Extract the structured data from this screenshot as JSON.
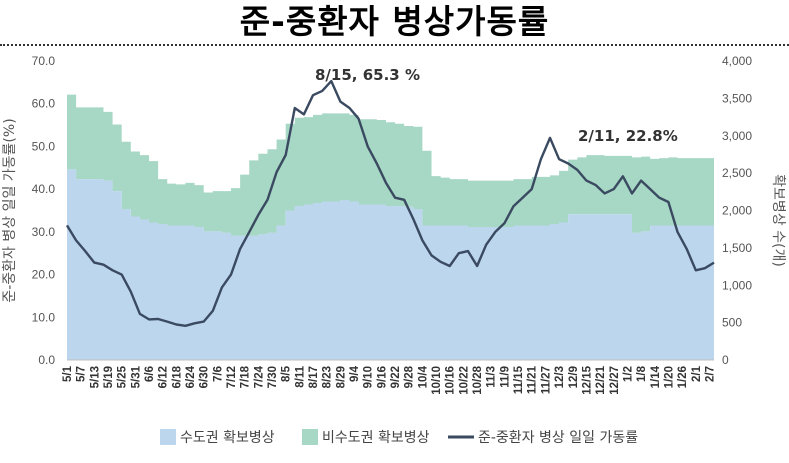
{
  "page": {
    "title": "준-중환자 병상가동률"
  },
  "chart_data": {
    "type": "line",
    "title": "준-중환자 병상가동률",
    "y_left_label": "준-중환자 병상 일일 가동률(%)",
    "y_right_label": "확보병상 수(개)",
    "y_left_range": [
      0,
      70
    ],
    "y_right_range": [
      0,
      4000
    ],
    "y_left_ticks": [
      "0.0",
      "10.0",
      "20.0",
      "30.0",
      "40.0",
      "50.0",
      "60.0",
      "70.0"
    ],
    "y_right_ticks": [
      "0",
      "500",
      "1,000",
      "1,500",
      "2,000",
      "2,500",
      "3,000",
      "3,500",
      "4,000"
    ],
    "x_ticks": [
      "5/1",
      "5/7",
      "5/13",
      "5/19",
      "5/25",
      "5/31",
      "6/6",
      "6/12",
      "6/18",
      "6/24",
      "6/30",
      "7/6",
      "7/12",
      "7/18",
      "7/24",
      "7/30",
      "8/5",
      "8/11",
      "8/17",
      "8/23",
      "8/29",
      "9/4",
      "9/10",
      "9/16",
      "9/22",
      "9/28",
      "10/4",
      "10/10",
      "10/16",
      "10/22",
      "10/28",
      "11/3",
      "11/9",
      "11/15",
      "11/21",
      "11/27",
      "12/3",
      "12/9",
      "12/15",
      "12/21",
      "12/27",
      "1/2",
      "1/8",
      "1/14",
      "1/20",
      "1/26",
      "2/1",
      "2/7"
    ],
    "legend": [
      "수도권 확보병상",
      "비수도권 확보병상",
      "준-중환자 병상 일일 가동률"
    ],
    "legend_position": "bottom",
    "annotations": [
      {
        "text": "8/15, 65.3 %",
        "x": "8/15",
        "y": 65.3
      },
      {
        "text": "2/11, 22.8%",
        "x": "2/11",
        "y": 22.8
      }
    ],
    "x_step_days": 6,
    "colors": {
      "capital": "#bcd6ee",
      "noncapital": "#a7d7c5",
      "line": "#3a4a60"
    },
    "series": [
      {
        "name": "수도권 확보병상",
        "axis": "right",
        "type": "area",
        "values": [
          2550,
          2420,
          2420,
          2420,
          2400,
          2260,
          2020,
          1920,
          1880,
          1840,
          1820,
          1800,
          1800,
          1800,
          1780,
          1720,
          1720,
          1700,
          1660,
          1660,
          1660,
          1680,
          1700,
          1800,
          2000,
          2060,
          2080,
          2100,
          2120,
          2120,
          2140,
          2120,
          2080,
          2080,
          2080,
          2060,
          2060,
          2050,
          2020,
          1800,
          1800,
          1800,
          1800,
          1800,
          1780,
          1780,
          1780,
          1780,
          1780,
          1800,
          1800,
          1800,
          1800,
          1820,
          1840,
          1950,
          1950,
          1950,
          1950,
          1950,
          1950,
          1950,
          1700,
          1720,
          1800,
          1800,
          1800,
          1800,
          1800,
          1800,
          1800,
          1700
        ]
      },
      {
        "name": "비수도권 확보병상",
        "axis": "right",
        "type": "area",
        "values": [
          1000,
          960,
          960,
          960,
          920,
          890,
          900,
          870,
          860,
          820,
          600,
          560,
          550,
          570,
          560,
          520,
          540,
          560,
          640,
          820,
          1010,
          1080,
          1120,
          1150,
          1160,
          1180,
          1170,
          1180,
          1180,
          1180,
          1160,
          1160,
          1140,
          1140,
          1130,
          1120,
          1100,
          1080,
          1100,
          1000,
          660,
          640,
          620,
          620,
          620,
          620,
          620,
          620,
          620,
          620,
          620,
          650,
          650,
          650,
          690,
          730,
          760,
          790,
          790,
          780,
          780,
          780,
          1010,
          1000,
          890,
          900,
          910,
          900,
          900,
          900,
          900,
          360
        ]
      },
      {
        "name": "준-중환자 병상 일일 가동률",
        "axis": "left",
        "type": "line",
        "values": [
          31.5,
          28.0,
          25.5,
          22.8,
          22.3,
          21.0,
          20.0,
          16.0,
          10.8,
          9.5,
          9.6,
          9.0,
          8.3,
          8.0,
          8.6,
          9.0,
          11.5,
          17.0,
          20.0,
          26.0,
          30.0,
          34.0,
          37.5,
          44.0,
          48.0,
          59.0,
          57.5,
          62.0,
          63.0,
          65.3,
          60.5,
          59.0,
          56.5,
          50.0,
          46.0,
          41.5,
          38.0,
          37.5,
          33.0,
          28.0,
          24.5,
          23.0,
          22.0,
          25.0,
          25.5,
          22.0,
          27.0,
          30.0,
          32.0,
          36.0,
          38.0,
          40.0,
          47.0,
          52.0,
          47.0,
          46.0,
          44.5,
          42.0,
          41.0,
          39.0,
          40.0,
          43.0,
          39.0,
          42.0,
          40.0,
          38.0,
          37.0,
          30.0,
          26.0,
          21.0,
          21.5,
          22.8
        ]
      }
    ]
  }
}
